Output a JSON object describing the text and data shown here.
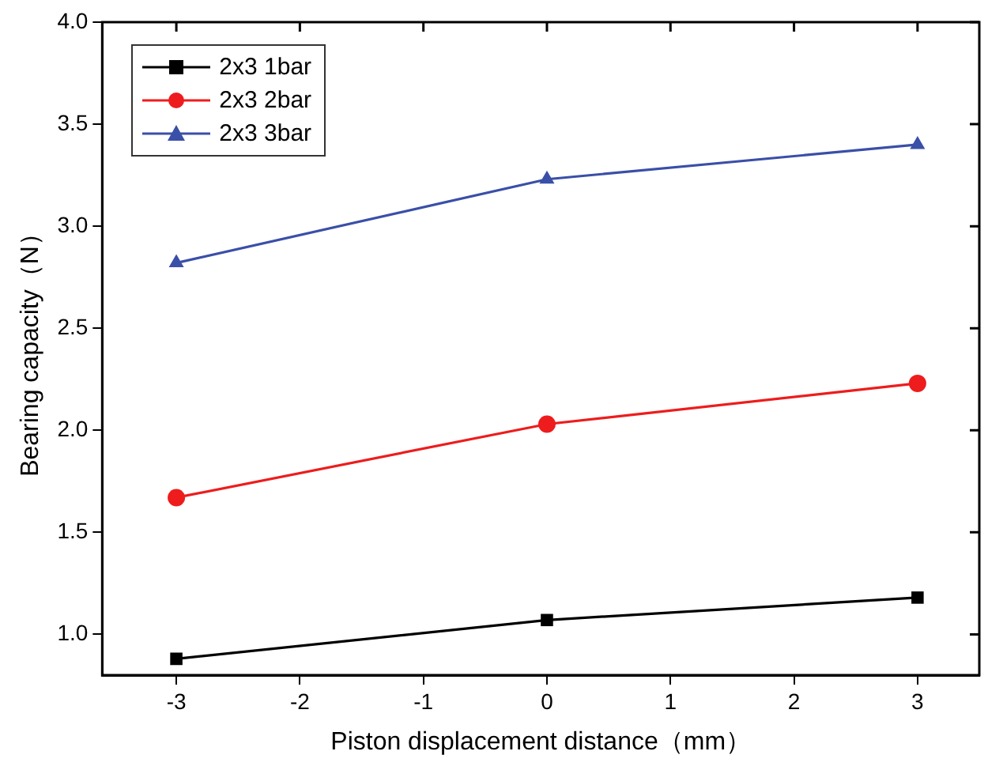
{
  "chart_data": {
    "type": "line",
    "xlabel": "Piston displacement distance（mm）",
    "ylabel": "Bearing capacity（N）",
    "x": [
      -3,
      0,
      3
    ],
    "series": [
      {
        "name": "2x3 1bar",
        "color": "#000000",
        "marker": "square",
        "values": [
          0.88,
          1.07,
          1.18
        ]
      },
      {
        "name": "2x3 2bar",
        "color": "#ee1c1c",
        "marker": "circle",
        "values": [
          1.67,
          2.03,
          2.23
        ]
      },
      {
        "name": "2x3 3bar",
        "color": "#3a4fa8",
        "marker": "triangle",
        "values": [
          2.82,
          3.23,
          3.4
        ]
      }
    ],
    "xlim": [
      -3.6,
      3.5
    ],
    "xticks": [
      -3,
      -2,
      -1,
      0,
      1,
      2,
      3
    ],
    "ylim": [
      0.8,
      4.0
    ],
    "yticks": [
      {
        "value": 1,
        "label": "1.0"
      },
      {
        "value": 1.5,
        "label": "1.5"
      },
      {
        "value": 2,
        "label": "2.0"
      },
      {
        "value": 2.5,
        "label": "2.5"
      },
      {
        "value": 3,
        "label": "3.0"
      },
      {
        "value": 3.5,
        "label": "3.5"
      },
      {
        "value": 4,
        "label": "4.0"
      }
    ],
    "grid": false,
    "legend": "top left",
    "line_style": "solid"
  }
}
